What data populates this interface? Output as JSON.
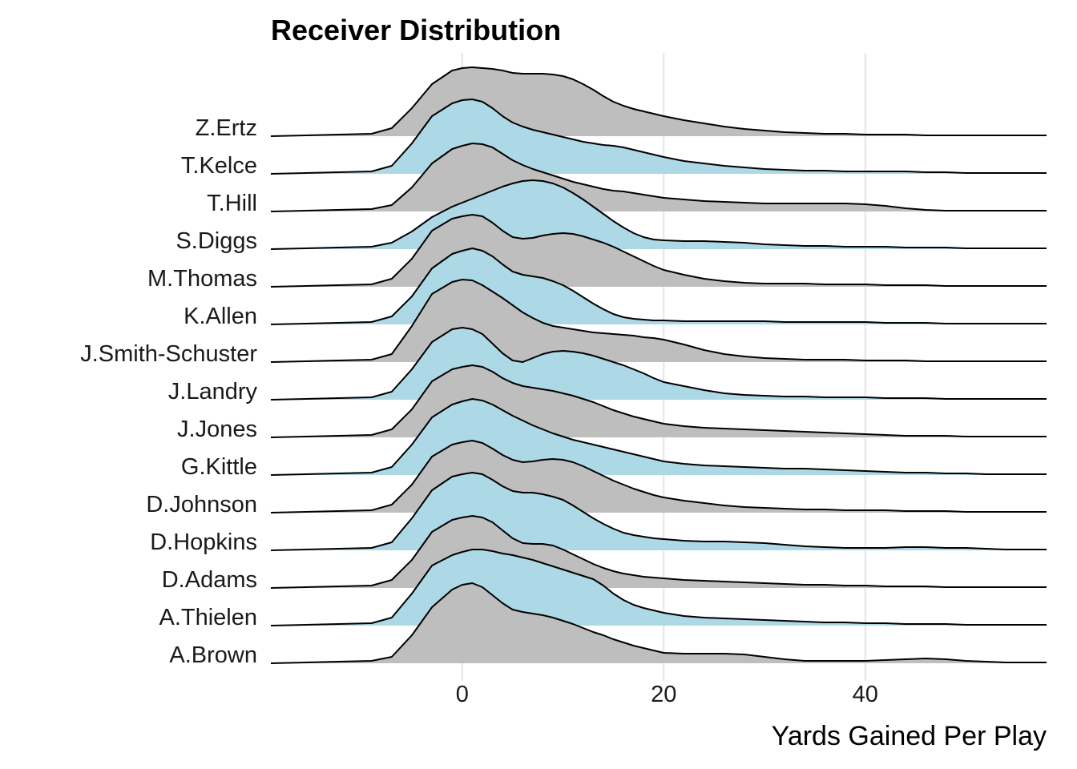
{
  "chart_data": {
    "type": "ridgeline",
    "title": "Receiver Distribution",
    "xlabel": "Yards Gained Per Play",
    "ylabel": "",
    "xlim": [
      -19,
      58
    ],
    "xticks": [
      0,
      20,
      40
    ],
    "grid_x": true,
    "legend": "none",
    "colors": {
      "alt_a": "#bebebe",
      "alt_b": "#add8e6",
      "line": "#000000",
      "grid": "#e5e5e5"
    },
    "x": [
      -19,
      -9,
      -7,
      -5,
      -3,
      -1,
      0,
      1,
      2,
      3,
      4,
      5,
      6,
      7,
      8,
      9,
      10,
      11,
      12,
      13,
      14,
      15,
      16,
      17,
      18,
      19,
      20,
      22,
      24,
      26,
      28,
      30,
      32,
      34,
      36,
      38,
      40,
      42,
      44,
      46,
      48,
      50,
      52,
      54,
      56,
      58
    ],
    "series": [
      {
        "name": "A.Brown",
        "values": [
          0,
          0.03,
          0.08,
          0.35,
          0.7,
          0.92,
          0.98,
          1.0,
          0.95,
          0.85,
          0.75,
          0.67,
          0.64,
          0.62,
          0.6,
          0.57,
          0.53,
          0.49,
          0.44,
          0.39,
          0.35,
          0.3,
          0.26,
          0.22,
          0.19,
          0.16,
          0.13,
          0.12,
          0.12,
          0.12,
          0.11,
          0.08,
          0.05,
          0.03,
          0.03,
          0.03,
          0.03,
          0.04,
          0.05,
          0.06,
          0.05,
          0.03,
          0.02,
          0.01,
          0.01,
          0.01
        ]
      },
      {
        "name": "A.Thielen",
        "values": [
          0,
          0.03,
          0.1,
          0.4,
          0.75,
          0.88,
          0.92,
          0.95,
          0.95,
          0.93,
          0.9,
          0.88,
          0.85,
          0.82,
          0.78,
          0.74,
          0.7,
          0.66,
          0.62,
          0.58,
          0.5,
          0.4,
          0.32,
          0.26,
          0.22,
          0.19,
          0.16,
          0.12,
          0.1,
          0.09,
          0.08,
          0.07,
          0.06,
          0.05,
          0.04,
          0.04,
          0.03,
          0.03,
          0.02,
          0.02,
          0.02,
          0.01,
          0.01,
          0.01,
          0.01,
          0.01
        ]
      },
      {
        "name": "D.Adams",
        "values": [
          0,
          0.03,
          0.1,
          0.35,
          0.7,
          0.85,
          0.88,
          0.9,
          0.88,
          0.82,
          0.72,
          0.62,
          0.56,
          0.55,
          0.55,
          0.53,
          0.48,
          0.42,
          0.36,
          0.3,
          0.25,
          0.21,
          0.18,
          0.16,
          0.14,
          0.13,
          0.12,
          0.1,
          0.09,
          0.08,
          0.07,
          0.06,
          0.05,
          0.04,
          0.04,
          0.03,
          0.03,
          0.02,
          0.02,
          0.02,
          0.01,
          0.01,
          0.01,
          0.01,
          0.01,
          0.01
        ]
      },
      {
        "name": "D.Hopkins",
        "values": [
          0,
          0.03,
          0.1,
          0.4,
          0.75,
          0.92,
          0.95,
          0.97,
          0.95,
          0.88,
          0.8,
          0.74,
          0.72,
          0.72,
          0.7,
          0.67,
          0.63,
          0.56,
          0.48,
          0.4,
          0.33,
          0.27,
          0.22,
          0.19,
          0.17,
          0.15,
          0.14,
          0.12,
          0.11,
          0.11,
          0.1,
          0.09,
          0.07,
          0.05,
          0.04,
          0.03,
          0.03,
          0.03,
          0.04,
          0.04,
          0.03,
          0.03,
          0.02,
          0.01,
          0.01,
          0.01
        ]
      },
      {
        "name": "D.Johnson",
        "values": [
          0,
          0.03,
          0.1,
          0.35,
          0.7,
          0.85,
          0.88,
          0.9,
          0.87,
          0.8,
          0.72,
          0.66,
          0.63,
          0.64,
          0.66,
          0.67,
          0.66,
          0.63,
          0.58,
          0.52,
          0.46,
          0.4,
          0.35,
          0.3,
          0.26,
          0.22,
          0.19,
          0.15,
          0.12,
          0.09,
          0.07,
          0.06,
          0.05,
          0.04,
          0.04,
          0.03,
          0.03,
          0.03,
          0.02,
          0.02,
          0.02,
          0.01,
          0.01,
          0.01,
          0.01,
          0.01
        ]
      },
      {
        "name": "G.Kittle",
        "values": [
          0,
          0.03,
          0.1,
          0.38,
          0.72,
          0.88,
          0.92,
          0.95,
          0.93,
          0.88,
          0.81,
          0.74,
          0.68,
          0.62,
          0.57,
          0.52,
          0.48,
          0.44,
          0.41,
          0.38,
          0.35,
          0.32,
          0.29,
          0.26,
          0.23,
          0.2,
          0.17,
          0.14,
          0.12,
          0.11,
          0.1,
          0.09,
          0.08,
          0.08,
          0.07,
          0.06,
          0.05,
          0.04,
          0.03,
          0.03,
          0.02,
          0.02,
          0.01,
          0.01,
          0.01,
          0.01
        ]
      },
      {
        "name": "J.Jones",
        "values": [
          0,
          0.03,
          0.1,
          0.35,
          0.7,
          0.85,
          0.88,
          0.9,
          0.88,
          0.82,
          0.74,
          0.68,
          0.64,
          0.62,
          0.6,
          0.58,
          0.55,
          0.52,
          0.48,
          0.44,
          0.39,
          0.34,
          0.3,
          0.26,
          0.23,
          0.2,
          0.17,
          0.14,
          0.12,
          0.11,
          0.1,
          0.09,
          0.08,
          0.07,
          0.06,
          0.05,
          0.04,
          0.03,
          0.02,
          0.02,
          0.02,
          0.01,
          0.01,
          0.01,
          0.01,
          0.01
        ]
      },
      {
        "name": "J.Landry",
        "values": [
          0,
          0.03,
          0.1,
          0.38,
          0.72,
          0.88,
          0.9,
          0.88,
          0.82,
          0.7,
          0.58,
          0.49,
          0.47,
          0.52,
          0.57,
          0.6,
          0.61,
          0.6,
          0.58,
          0.55,
          0.51,
          0.47,
          0.43,
          0.38,
          0.33,
          0.27,
          0.22,
          0.17,
          0.12,
          0.08,
          0.06,
          0.05,
          0.04,
          0.04,
          0.03,
          0.03,
          0.03,
          0.02,
          0.02,
          0.02,
          0.01,
          0.01,
          0.01,
          0.01,
          0.01,
          0.01
        ]
      },
      {
        "name": "J.Smith-Schuster",
        "values": [
          0,
          0.03,
          0.1,
          0.45,
          0.85,
          1.0,
          1.03,
          1.02,
          0.96,
          0.88,
          0.8,
          0.71,
          0.62,
          0.55,
          0.49,
          0.45,
          0.43,
          0.41,
          0.39,
          0.37,
          0.36,
          0.35,
          0.34,
          0.33,
          0.31,
          0.3,
          0.28,
          0.22,
          0.15,
          0.1,
          0.07,
          0.05,
          0.04,
          0.03,
          0.03,
          0.03,
          0.02,
          0.02,
          0.02,
          0.01,
          0.01,
          0.01,
          0.01,
          0.01,
          0.01,
          0.01
        ]
      },
      {
        "name": "K.Allen",
        "values": [
          0,
          0.03,
          0.1,
          0.35,
          0.7,
          0.88,
          0.92,
          0.95,
          0.92,
          0.85,
          0.75,
          0.66,
          0.62,
          0.6,
          0.58,
          0.54,
          0.49,
          0.42,
          0.34,
          0.26,
          0.19,
          0.13,
          0.09,
          0.07,
          0.06,
          0.05,
          0.05,
          0.04,
          0.04,
          0.04,
          0.04,
          0.04,
          0.03,
          0.03,
          0.03,
          0.03,
          0.03,
          0.02,
          0.02,
          0.02,
          0.01,
          0.01,
          0.01,
          0.01,
          0.01,
          0.01
        ]
      },
      {
        "name": "M.Thomas",
        "values": [
          0,
          0.03,
          0.1,
          0.35,
          0.7,
          0.85,
          0.88,
          0.9,
          0.88,
          0.8,
          0.7,
          0.62,
          0.6,
          0.61,
          0.64,
          0.66,
          0.67,
          0.66,
          0.63,
          0.59,
          0.55,
          0.5,
          0.44,
          0.38,
          0.32,
          0.26,
          0.21,
          0.15,
          0.1,
          0.07,
          0.05,
          0.04,
          0.04,
          0.04,
          0.03,
          0.03,
          0.03,
          0.02,
          0.02,
          0.02,
          0.01,
          0.01,
          0.01,
          0.01,
          0.01,
          0.01
        ]
      },
      {
        "name": "S.Diggs",
        "values": [
          0,
          0.03,
          0.08,
          0.22,
          0.4,
          0.53,
          0.58,
          0.63,
          0.68,
          0.73,
          0.78,
          0.82,
          0.85,
          0.86,
          0.85,
          0.82,
          0.77,
          0.7,
          0.62,
          0.53,
          0.44,
          0.35,
          0.27,
          0.2,
          0.15,
          0.12,
          0.11,
          0.1,
          0.1,
          0.09,
          0.08,
          0.06,
          0.05,
          0.04,
          0.04,
          0.03,
          0.03,
          0.03,
          0.02,
          0.02,
          0.02,
          0.01,
          0.01,
          0.01,
          0.01,
          0.01
        ]
      },
      {
        "name": "T.Hill",
        "values": [
          0,
          0.03,
          0.08,
          0.3,
          0.6,
          0.78,
          0.82,
          0.85,
          0.84,
          0.8,
          0.72,
          0.64,
          0.58,
          0.53,
          0.49,
          0.45,
          0.41,
          0.37,
          0.34,
          0.31,
          0.28,
          0.26,
          0.25,
          0.23,
          0.21,
          0.19,
          0.17,
          0.15,
          0.13,
          0.12,
          0.11,
          0.1,
          0.1,
          0.1,
          0.1,
          0.1,
          0.09,
          0.07,
          0.04,
          0.02,
          0.01,
          0.01,
          0.01,
          0.01,
          0.01,
          0.01
        ]
      },
      {
        "name": "T.Kelce",
        "values": [
          0,
          0.03,
          0.1,
          0.38,
          0.72,
          0.88,
          0.92,
          0.93,
          0.9,
          0.82,
          0.72,
          0.64,
          0.59,
          0.55,
          0.52,
          0.49,
          0.46,
          0.43,
          0.4,
          0.38,
          0.36,
          0.35,
          0.33,
          0.3,
          0.27,
          0.24,
          0.21,
          0.16,
          0.13,
          0.1,
          0.08,
          0.06,
          0.05,
          0.04,
          0.04,
          0.03,
          0.03,
          0.03,
          0.03,
          0.02,
          0.02,
          0.01,
          0.01,
          0.01,
          0.01,
          0.01
        ]
      },
      {
        "name": "Z.Ertz",
        "values": [
          0,
          0.03,
          0.1,
          0.35,
          0.65,
          0.82,
          0.85,
          0.86,
          0.85,
          0.84,
          0.82,
          0.79,
          0.78,
          0.78,
          0.78,
          0.77,
          0.75,
          0.71,
          0.65,
          0.58,
          0.5,
          0.43,
          0.38,
          0.34,
          0.31,
          0.28,
          0.25,
          0.2,
          0.16,
          0.12,
          0.09,
          0.07,
          0.05,
          0.04,
          0.03,
          0.03,
          0.02,
          0.02,
          0.02,
          0.01,
          0.01,
          0.01,
          0.01,
          0.01,
          0.01,
          0.01
        ]
      }
    ]
  }
}
